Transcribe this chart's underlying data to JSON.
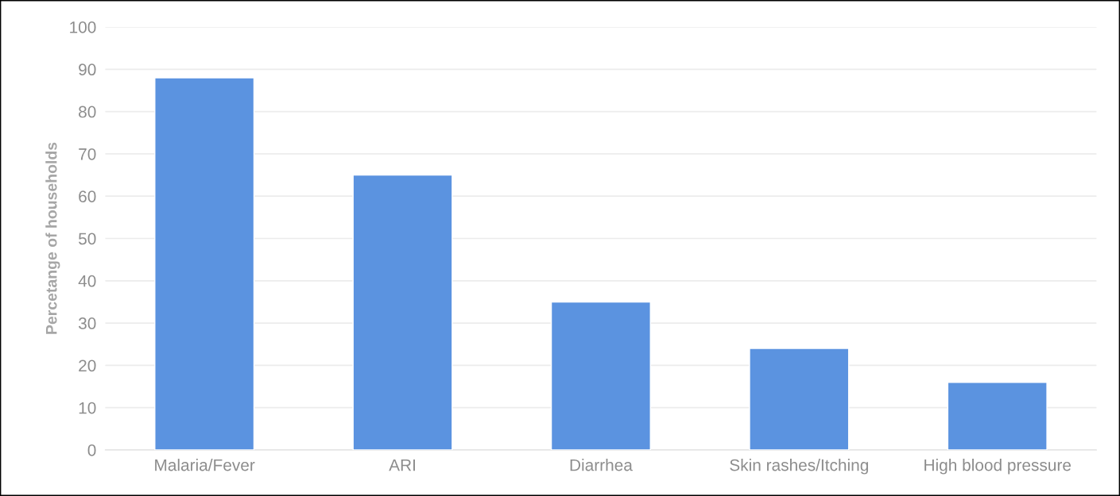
{
  "chart_data": {
    "type": "bar",
    "ylabel": "Percetange of households",
    "categories": [
      "Malaria/Fever",
      "ARI",
      "Diarrhea",
      "Skin rashes/Itching",
      "High blood pressure"
    ],
    "values": [
      88,
      65,
      35,
      24,
      16
    ],
    "color": "#5b93e0",
    "ylim": [
      0,
      100
    ],
    "yticks": [
      0,
      10,
      20,
      30,
      40,
      50,
      60,
      70,
      80,
      90,
      100
    ],
    "grid": "y",
    "legend": false
  }
}
